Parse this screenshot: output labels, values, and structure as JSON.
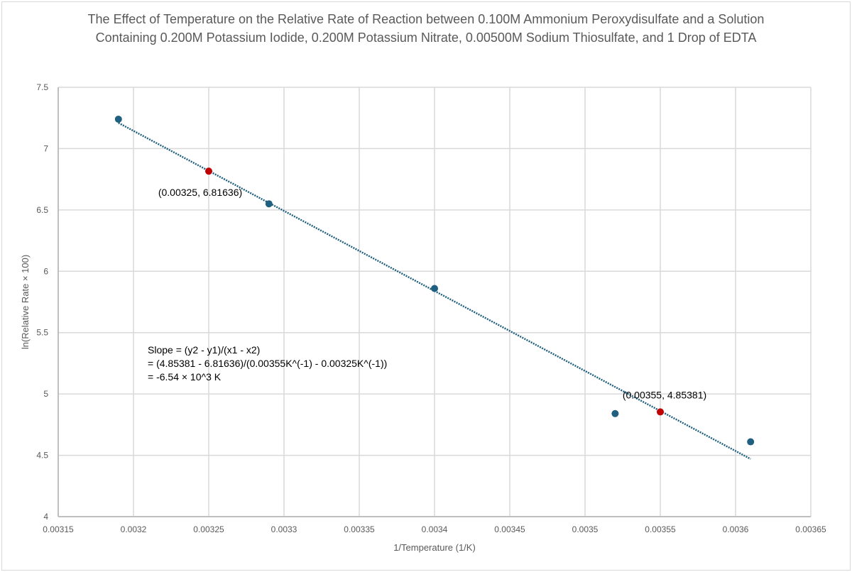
{
  "chart_data": {
    "type": "scatter",
    "title": "The Effect of Temperature on the Relative Rate of Reaction between 0.100M Ammonium Peroxydisulfate and a Solution Containing 0.200M Potassium Iodide, 0.200M Potassium Nitrate, 0.00500M Sodium Thiosulfate, and 1 Drop of EDTA",
    "xlabel": "1/Temperature (1/K)",
    "ylabel": "ln(Relative Rate × 100)",
    "xlim": [
      0.00315,
      0.00365
    ],
    "ylim": [
      4,
      7.5
    ],
    "xticks": [
      "0.00315",
      "0.0032",
      "0.00325",
      "0.0033",
      "0.00335",
      "0.0034",
      "0.00345",
      "0.0035",
      "0.00355",
      "0.0036",
      "0.00365"
    ],
    "yticks": [
      "4",
      "4.5",
      "5",
      "5.5",
      "6",
      "6.5",
      "7",
      "7.5"
    ],
    "grid": true,
    "colors": {
      "points": "#1f5f7f",
      "highlight": "#c00000",
      "trendline": "#1f5f7f",
      "grid": "#d9d9d9"
    },
    "points": [
      {
        "x": 0.00319,
        "y": 7.24
      },
      {
        "x": 0.00329,
        "y": 6.55
      },
      {
        "x": 0.0034,
        "y": 5.86
      },
      {
        "x": 0.00352,
        "y": 4.84
      },
      {
        "x": 0.00361,
        "y": 4.61
      }
    ],
    "highlight_points": [
      {
        "x": 0.00325,
        "y": 6.81636,
        "label": "(0.00325, 6.81636)"
      },
      {
        "x": 0.00355,
        "y": 4.85381,
        "label": "(0.00355, 4.85381)"
      }
    ],
    "trendline": {
      "style": "dotted",
      "x": [
        0.00319,
        0.00361
      ],
      "y": [
        7.21,
        4.47
      ]
    },
    "annotation": [
      "Slope = (y2 - y1)/(x1 - x2)",
      "= (4.85381 - 6.81636)/(0.00355K^(-1) - 0.00325K^(-1))",
      "= -6.54 × 10^3 K"
    ]
  }
}
